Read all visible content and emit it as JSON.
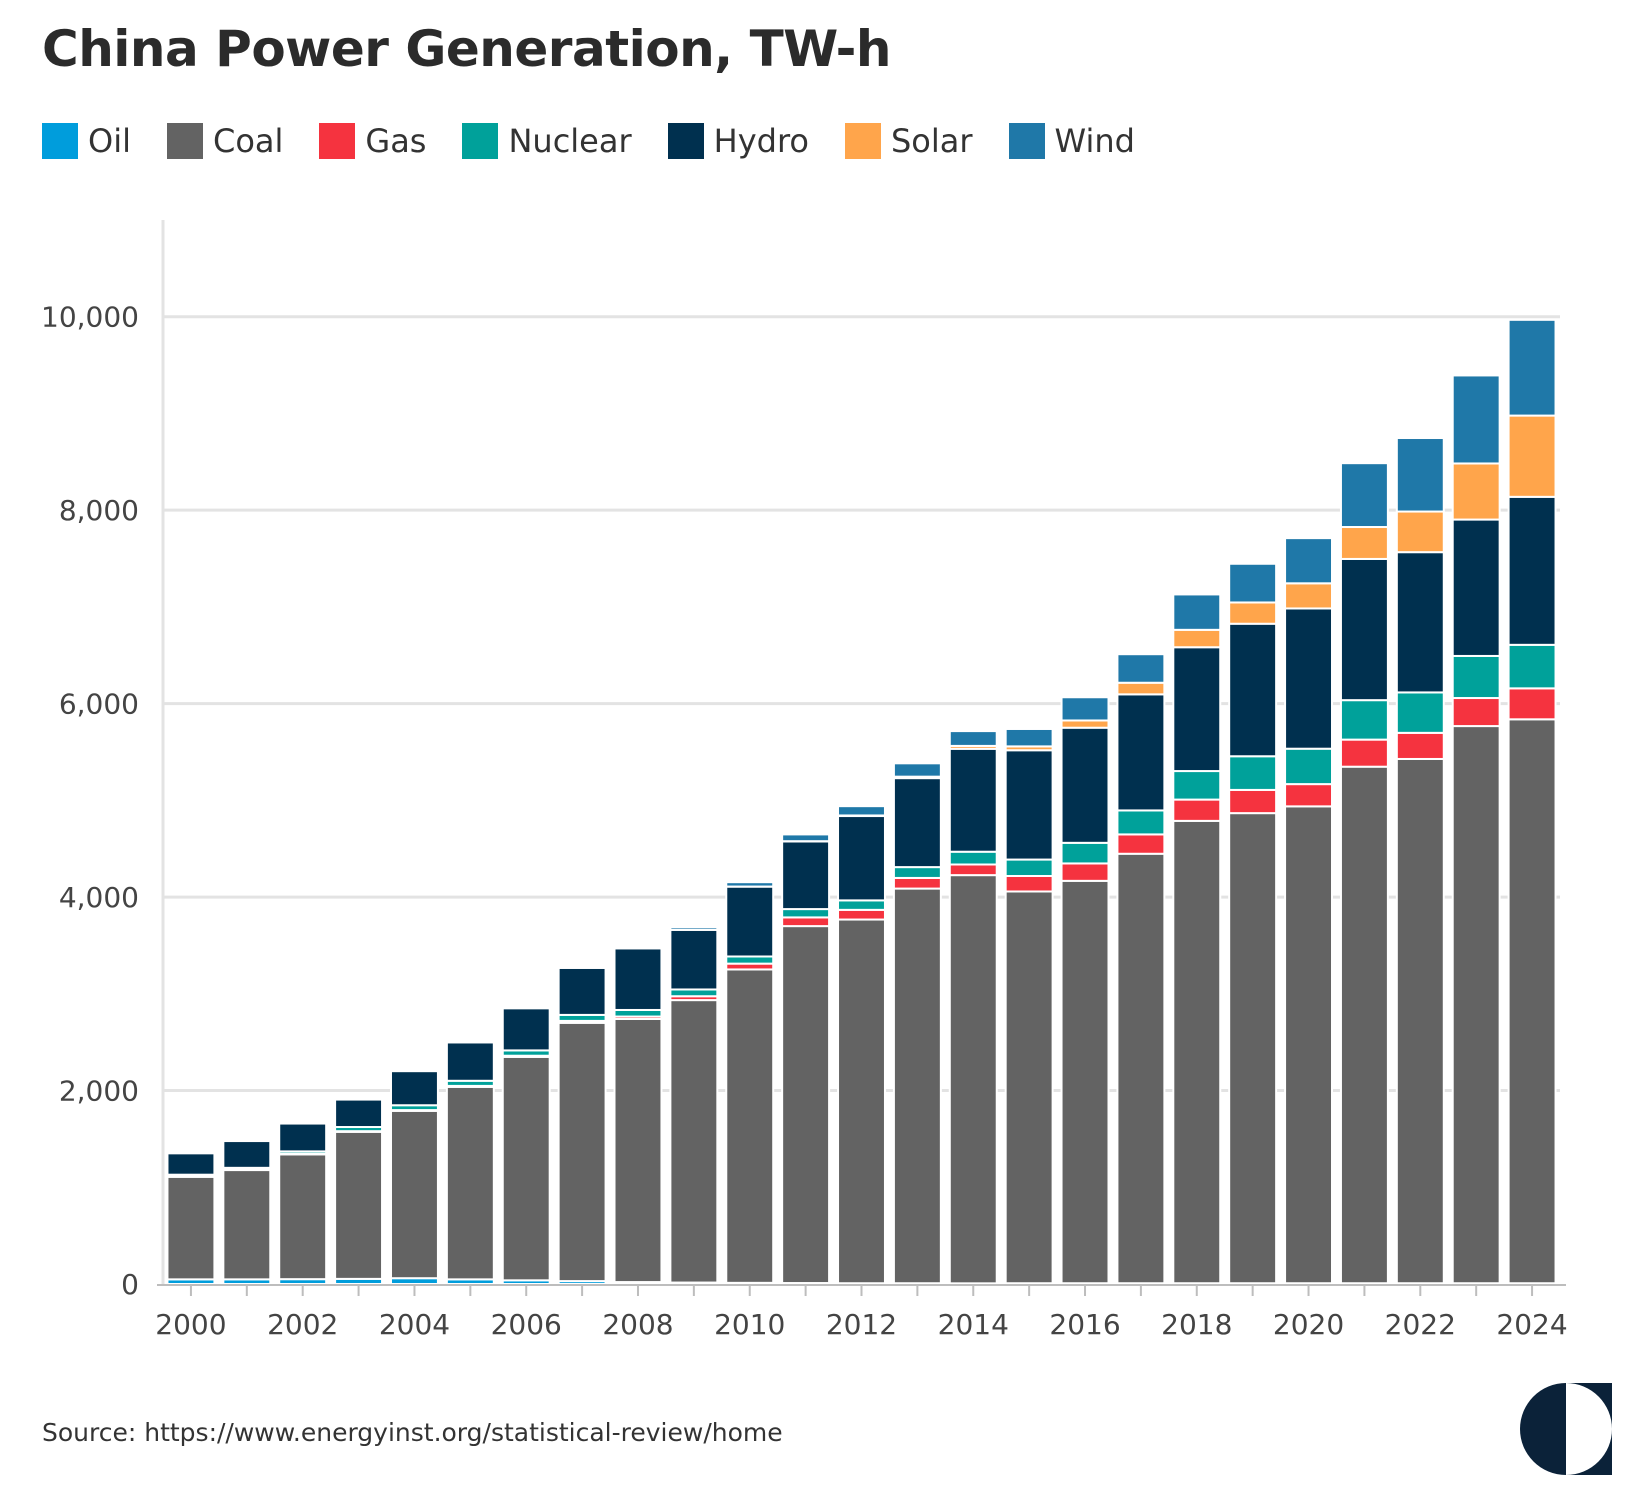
{
  "title": "China Power Generation, TW-h",
  "source": "Source: https://www.energyinst.org/statistical-review/home",
  "chart_data": {
    "type": "bar",
    "stacked": true,
    "title": "China Power Generation, TW-h",
    "xlabel": "",
    "ylabel": "",
    "ylim": [
      0,
      11000
    ],
    "yticks": [
      0,
      2000,
      4000,
      6000,
      8000,
      10000
    ],
    "ytick_labels": [
      "0",
      "2,000",
      "4,000",
      "6,000",
      "8,000",
      "10,000"
    ],
    "xtick_labels": [
      "2000",
      "2002",
      "2004",
      "2006",
      "2008",
      "2010",
      "2012",
      "2014",
      "2016",
      "2018",
      "2020",
      "2022",
      "2024"
    ],
    "grid": true,
    "legend_position": "top-left",
    "categories": [
      "2000",
      "2001",
      "2002",
      "2003",
      "2004",
      "2005",
      "2006",
      "2007",
      "2008",
      "2009",
      "2010",
      "2011",
      "2012",
      "2013",
      "2014",
      "2015",
      "2016",
      "2017",
      "2018",
      "2019",
      "2020",
      "2021",
      "2022",
      "2023",
      "2024"
    ],
    "series": [
      {
        "name": "Oil",
        "color": "#009ddc",
        "values": [
          48,
          48,
          50,
          53,
          60,
          48,
          38,
          30,
          20,
          15,
          12,
          10,
          8,
          8,
          7,
          8,
          8,
          8,
          8,
          8,
          8,
          8,
          8,
          8,
          8
        ]
      },
      {
        "name": "Coal",
        "color": "#636363",
        "values": [
          1060,
          1130,
          1290,
          1520,
          1730,
          1990,
          2310,
          2670,
          2720,
          2920,
          3240,
          3690,
          3760,
          4080,
          4220,
          4050,
          4160,
          4440,
          4780,
          4860,
          4930,
          5340,
          5420,
          5760,
          5830
        ]
      },
      {
        "name": "Gas",
        "color": "#f5333f",
        "values": [
          5,
          5,
          6,
          7,
          8,
          10,
          12,
          20,
          25,
          40,
          60,
          90,
          100,
          110,
          110,
          160,
          180,
          200,
          220,
          240,
          230,
          280,
          270,
          290,
          320
        ]
      },
      {
        "name": "Nuclear",
        "color": "#00a19a",
        "values": [
          17,
          18,
          25,
          43,
          50,
          53,
          55,
          62,
          68,
          70,
          74,
          86,
          98,
          112,
          132,
          170,
          213,
          248,
          295,
          348,
          366,
          408,
          418,
          435,
          450
        ]
      },
      {
        "name": "Hydro",
        "color": "#00304f",
        "values": [
          222,
          277,
          288,
          284,
          353,
          397,
          436,
          486,
          637,
          616,
          722,
          699,
          872,
          920,
          1064,
          1130,
          1190,
          1200,
          1280,
          1370,
          1450,
          1460,
          1450,
          1410,
          1530
        ]
      },
      {
        "name": "Solar",
        "color": "#ffa54b",
        "values": [
          0,
          0,
          0,
          0,
          0,
          0,
          0,
          0,
          0,
          0,
          1,
          3,
          6,
          15,
          30,
          40,
          75,
          120,
          180,
          220,
          260,
          330,
          420,
          580,
          840
        ]
      },
      {
        "name": "Wind",
        "color": "#1f78a8",
        "values": [
          1,
          1,
          1,
          1,
          1,
          2,
          3,
          6,
          13,
          27,
          45,
          70,
          96,
          138,
          153,
          180,
          240,
          295,
          366,
          400,
          467,
          660,
          760,
          910,
          990
        ]
      }
    ]
  }
}
